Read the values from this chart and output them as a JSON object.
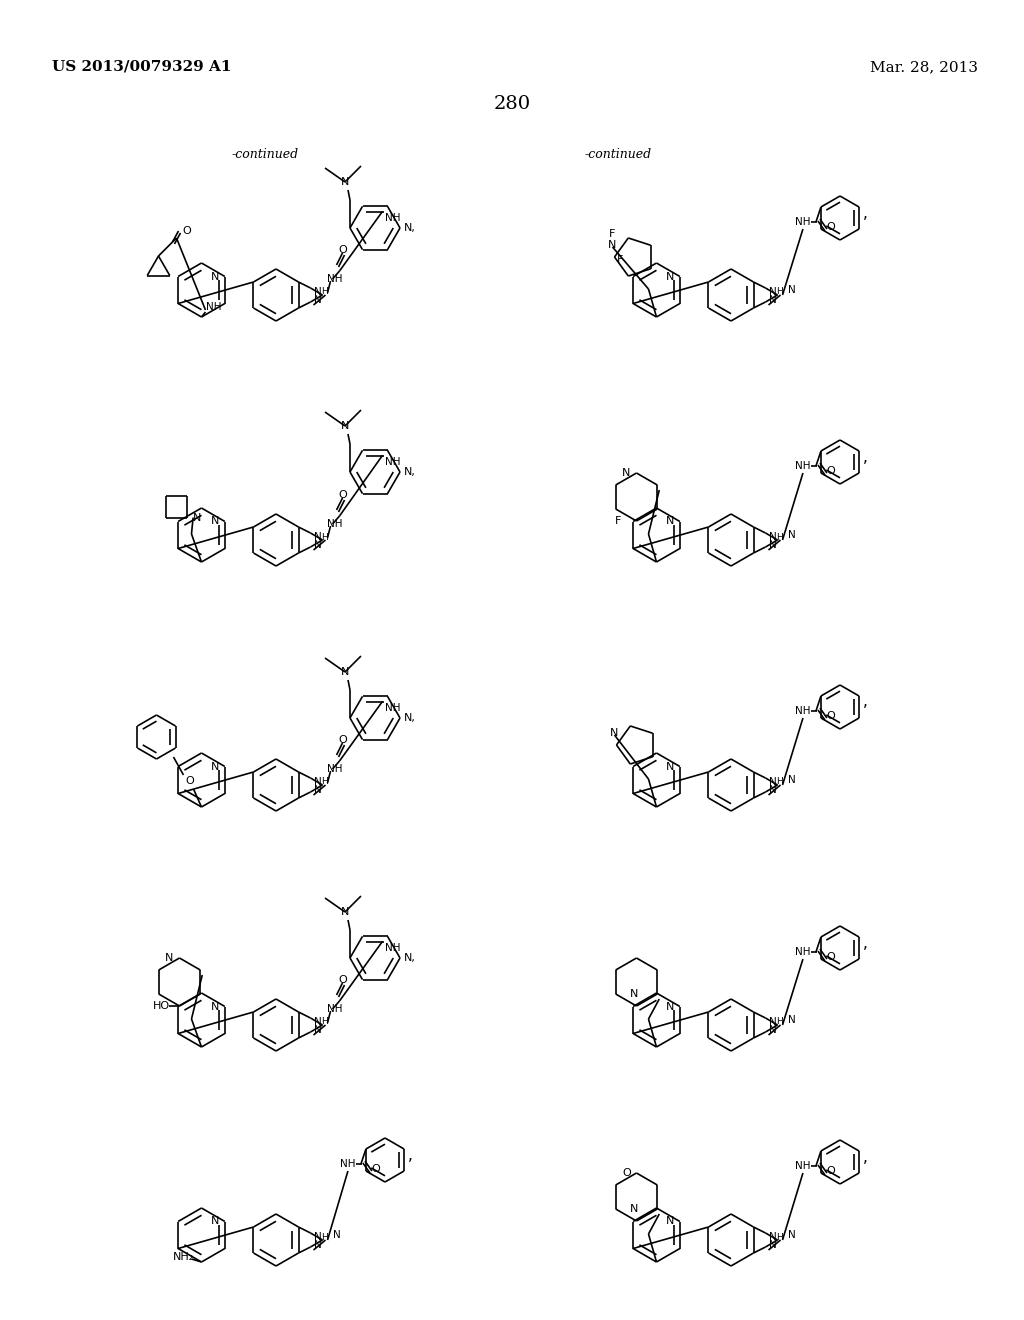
{
  "page_number": "280",
  "patent_number": "US 2013/0079329 A1",
  "patent_date": "Mar. 28, 2013",
  "background_color": "#ffffff",
  "text_color": "#000000",
  "continued_label": "-continued"
}
